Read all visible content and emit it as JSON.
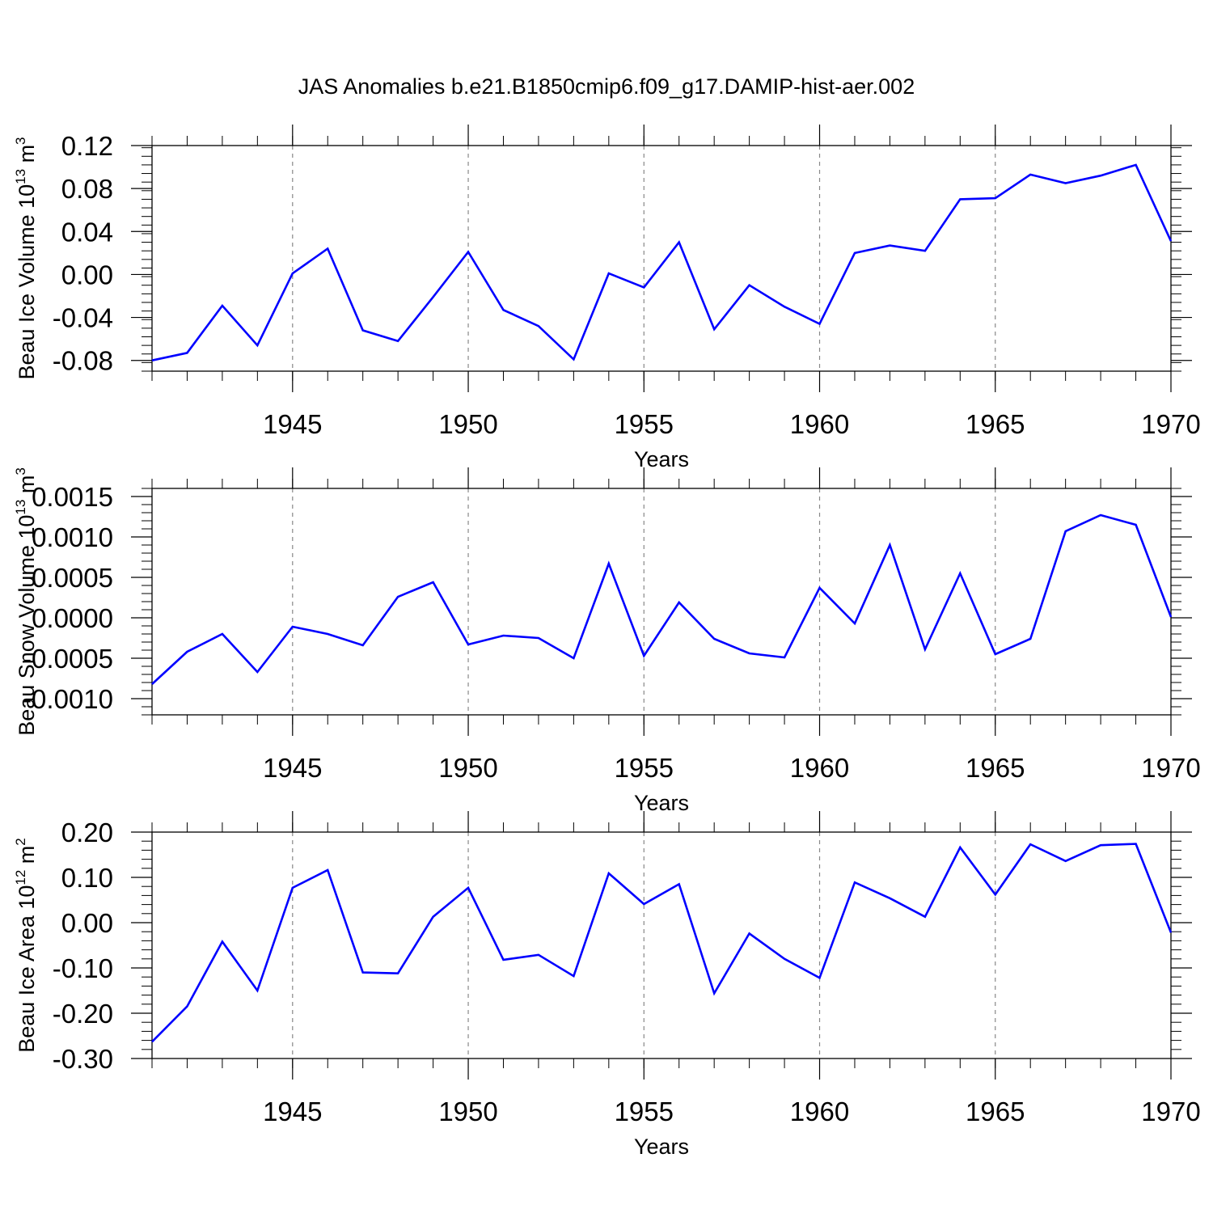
{
  "title": "JAS Anomalies b.e21.B1850cmip6.f09_g17.DAMIP-hist-aer.002",
  "line_color": "#0000ff",
  "chart_data": [
    {
      "type": "line",
      "ylabel_main": "Beau Ice Volume 10",
      "ylabel_exp": "13",
      "ylabel_unit": " m",
      "ylabel_unit_exp": "3",
      "xlabel": "Years",
      "xlim": [
        1941,
        1970
      ],
      "ylim": [
        -0.09,
        0.12
      ],
      "x_ticks": [
        1945,
        1950,
        1955,
        1960,
        1965,
        1970
      ],
      "x_tick_labels": [
        "1945",
        "1950",
        "1955",
        "1960",
        "1965",
        "1970"
      ],
      "y_ticks": [
        -0.08,
        -0.04,
        0.0,
        0.04,
        0.08,
        0.12
      ],
      "y_tick_labels": [
        "-0.08",
        "-0.04",
        "0.00",
        "0.04",
        "0.08",
        "0.12"
      ],
      "x": [
        1941,
        1942,
        1943,
        1944,
        1945,
        1946,
        1947,
        1948,
        1949,
        1950,
        1951,
        1952,
        1953,
        1954,
        1955,
        1956,
        1957,
        1958,
        1959,
        1960,
        1961,
        1962,
        1963,
        1964,
        1965,
        1966,
        1967,
        1968,
        1969,
        1970
      ],
      "values": [
        -0.08,
        -0.073,
        -0.029,
        -0.066,
        0.001,
        0.024,
        -0.052,
        -0.062,
        -0.021,
        0.021,
        -0.033,
        -0.048,
        -0.079,
        0.001,
        -0.012,
        0.03,
        -0.051,
        -0.01,
        -0.03,
        -0.046,
        0.02,
        0.027,
        0.022,
        0.07,
        0.071,
        0.093,
        0.085,
        0.092,
        0.102,
        0.031
      ]
    },
    {
      "type": "line",
      "ylabel_main": "Beau Snow Volume 10",
      "ylabel_exp": "13",
      "ylabel_unit": " m",
      "ylabel_unit_exp": "3",
      "xlabel": "Years",
      "xlim": [
        1941,
        1970
      ],
      "ylim": [
        -0.0012,
        0.0016
      ],
      "x_ticks": [
        1945,
        1950,
        1955,
        1960,
        1965,
        1970
      ],
      "x_tick_labels": [
        "1945",
        "1950",
        "1955",
        "1960",
        "1965",
        "1970"
      ],
      "y_ticks": [
        -0.001,
        -0.0005,
        0.0,
        0.0005,
        0.001,
        0.0015
      ],
      "y_tick_labels": [
        "-0.0010",
        "-0.0005",
        "0.0000",
        "0.0005",
        "0.0010",
        "0.0015"
      ],
      "x": [
        1941,
        1942,
        1943,
        1944,
        1945,
        1946,
        1947,
        1948,
        1949,
        1950,
        1951,
        1952,
        1953,
        1954,
        1955,
        1956,
        1957,
        1958,
        1959,
        1960,
        1961,
        1962,
        1963,
        1964,
        1965,
        1966,
        1967,
        1968,
        1969,
        1970
      ],
      "values": [
        -0.00082,
        -0.00042,
        -0.0002,
        -0.00067,
        -0.00011,
        -0.0002,
        -0.00034,
        0.00026,
        0.00044,
        -0.00033,
        -0.00022,
        -0.00025,
        -0.0005,
        0.00067,
        -0.00047,
        0.00019,
        -0.00026,
        -0.00044,
        -0.00049,
        0.00037,
        -7e-05,
        0.0009,
        -0.00039,
        0.00055,
        -0.00045,
        -0.00026,
        0.00107,
        0.00127,
        0.00115,
        1e-05
      ]
    },
    {
      "type": "line",
      "ylabel_main": "Beau Ice Area 10",
      "ylabel_exp": "12",
      "ylabel_unit": " m",
      "ylabel_unit_exp": "2",
      "xlabel": "Years",
      "xlim": [
        1941,
        1970
      ],
      "ylim": [
        -0.3,
        0.2
      ],
      "x_ticks": [
        1945,
        1950,
        1955,
        1960,
        1965,
        1970
      ],
      "x_tick_labels": [
        "1945",
        "1950",
        "1955",
        "1960",
        "1965",
        "1970"
      ],
      "y_ticks": [
        -0.3,
        -0.2,
        -0.1,
        0.0,
        0.1,
        0.2
      ],
      "y_tick_labels": [
        "-0.30",
        "-0.20",
        "-0.10",
        "0.00",
        "0.10",
        "0.20"
      ],
      "x": [
        1941,
        1942,
        1943,
        1944,
        1945,
        1946,
        1947,
        1948,
        1949,
        1950,
        1951,
        1952,
        1953,
        1954,
        1955,
        1956,
        1957,
        1958,
        1959,
        1960,
        1961,
        1962,
        1963,
        1964,
        1965,
        1966,
        1967,
        1968,
        1969,
        1970
      ],
      "values": [
        -0.263,
        -0.185,
        -0.042,
        -0.15,
        0.077,
        0.116,
        -0.11,
        -0.112,
        0.013,
        0.077,
        -0.082,
        -0.071,
        -0.118,
        0.109,
        0.041,
        0.085,
        -0.156,
        -0.024,
        -0.08,
        -0.122,
        0.089,
        0.054,
        0.013,
        0.166,
        0.062,
        0.173,
        0.136,
        0.171,
        0.174,
        -0.022
      ]
    }
  ]
}
